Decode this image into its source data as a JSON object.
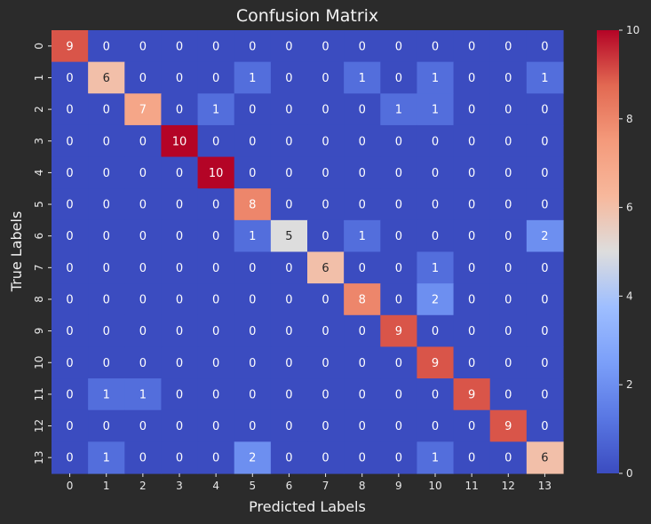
{
  "chart_data": {
    "type": "heatmap",
    "title": "Confusion Matrix",
    "xlabel": "Predicted Labels",
    "ylabel": "True Labels",
    "x_ticks": [
      "0",
      "1",
      "2",
      "3",
      "4",
      "5",
      "6",
      "7",
      "8",
      "9",
      "10",
      "11",
      "12",
      "13"
    ],
    "y_ticks": [
      "0",
      "1",
      "2",
      "3",
      "4",
      "5",
      "6",
      "7",
      "8",
      "9",
      "10",
      "11",
      "12",
      "13"
    ],
    "matrix": [
      [
        9,
        0,
        0,
        0,
        0,
        0,
        0,
        0,
        0,
        0,
        0,
        0,
        0,
        0
      ],
      [
        0,
        6,
        0,
        0,
        0,
        1,
        0,
        0,
        1,
        0,
        1,
        0,
        0,
        1
      ],
      [
        0,
        0,
        7,
        0,
        1,
        0,
        0,
        0,
        0,
        1,
        1,
        0,
        0,
        0
      ],
      [
        0,
        0,
        0,
        10,
        0,
        0,
        0,
        0,
        0,
        0,
        0,
        0,
        0,
        0
      ],
      [
        0,
        0,
        0,
        0,
        10,
        0,
        0,
        0,
        0,
        0,
        0,
        0,
        0,
        0
      ],
      [
        0,
        0,
        0,
        0,
        0,
        8,
        0,
        0,
        0,
        0,
        0,
        0,
        0,
        0
      ],
      [
        0,
        0,
        0,
        0,
        0,
        1,
        5,
        0,
        1,
        0,
        0,
        0,
        0,
        2
      ],
      [
        0,
        0,
        0,
        0,
        0,
        0,
        0,
        6,
        0,
        0,
        1,
        0,
        0,
        0
      ],
      [
        0,
        0,
        0,
        0,
        0,
        0,
        0,
        0,
        8,
        0,
        2,
        0,
        0,
        0
      ],
      [
        0,
        0,
        0,
        0,
        0,
        0,
        0,
        0,
        0,
        9,
        0,
        0,
        0,
        0
      ],
      [
        0,
        0,
        0,
        0,
        0,
        0,
        0,
        0,
        0,
        0,
        9,
        0,
        0,
        0
      ],
      [
        0,
        1,
        1,
        0,
        0,
        0,
        0,
        0,
        0,
        0,
        0,
        9,
        0,
        0
      ],
      [
        0,
        0,
        0,
        0,
        0,
        0,
        0,
        0,
        0,
        0,
        0,
        0,
        9,
        0
      ],
      [
        0,
        1,
        0,
        0,
        0,
        2,
        0,
        0,
        0,
        0,
        1,
        0,
        0,
        6
      ]
    ],
    "colormap": "coolwarm",
    "vmin": 0,
    "vmax": 10,
    "colorbar_ticks": [
      "0",
      "2",
      "4",
      "6",
      "8",
      "10"
    ],
    "grid": false,
    "legend": "colorbar-right"
  }
}
